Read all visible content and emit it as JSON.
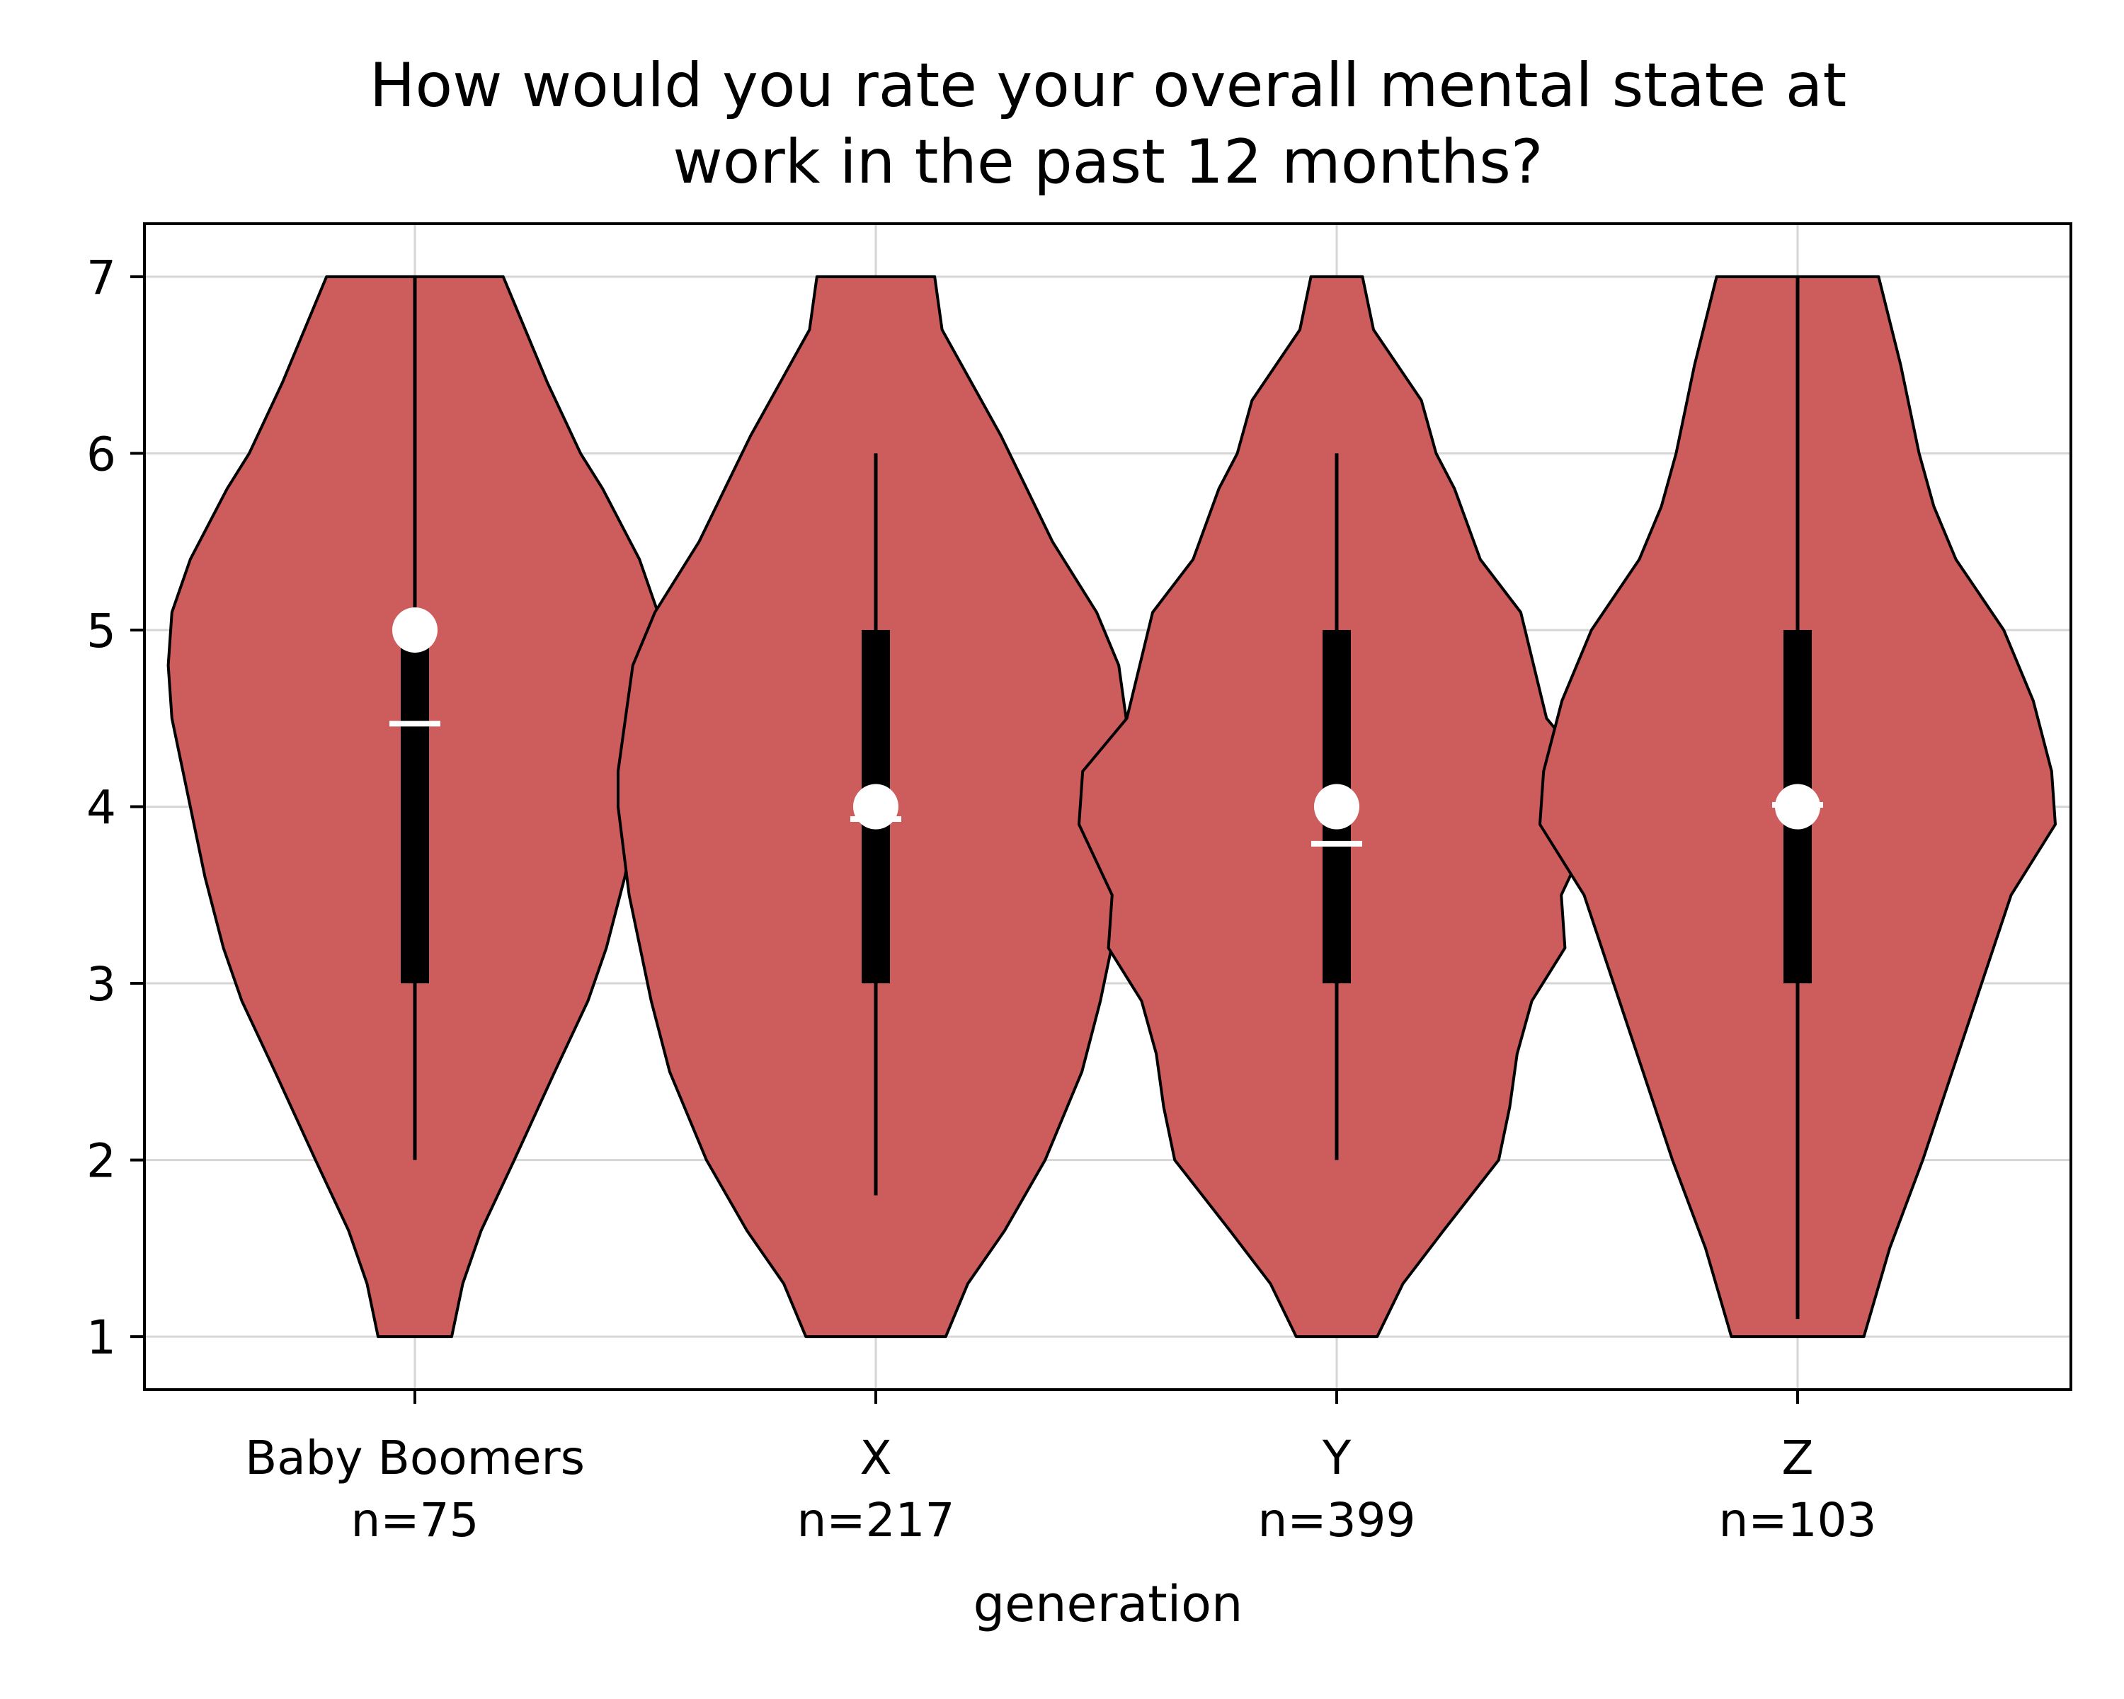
{
  "chart_data": {
    "type": "violin",
    "title_lines": [
      "How would you rate your overall mental state at",
      "work in the past 12 months?"
    ],
    "xlabel": "generation",
    "ylabel": "",
    "ylim": [
      0.7,
      7.3
    ],
    "yticks": [
      1,
      2,
      3,
      4,
      5,
      6,
      7
    ],
    "grid": true,
    "fill_color": "#cd5c5c",
    "edge_color": "#000000",
    "groups": [
      {
        "label": "Baby Boomers",
        "n_label": "n=75",
        "min": 1,
        "max": 7,
        "q1": 3,
        "q3": 5,
        "whisker_low": 2,
        "whisker_high": 7,
        "median": 5,
        "mean": 4.47,
        "density": [
          [
            1,
            0.1
          ],
          [
            1.3,
            0.13
          ],
          [
            1.6,
            0.18
          ],
          [
            2,
            0.27
          ],
          [
            2.5,
            0.38
          ],
          [
            2.9,
            0.47
          ],
          [
            3.2,
            0.52
          ],
          [
            3.6,
            0.57
          ],
          [
            4,
            0.61
          ],
          [
            4.5,
            0.66
          ],
          [
            4.8,
            0.67
          ],
          [
            5.1,
            0.66
          ],
          [
            5.4,
            0.61
          ],
          [
            5.8,
            0.51
          ],
          [
            6,
            0.45
          ],
          [
            6.4,
            0.36
          ],
          [
            6.8,
            0.28
          ],
          [
            7,
            0.24
          ]
        ]
      },
      {
        "label": "X",
        "n_label": "n=217",
        "min": 1,
        "max": 7,
        "q1": 3,
        "q3": 5,
        "whisker_low": 1.8,
        "whisker_high": 6,
        "median": 4,
        "mean": 3.93,
        "density": [
          [
            1,
            0.19
          ],
          [
            1.3,
            0.25
          ],
          [
            1.6,
            0.35
          ],
          [
            2,
            0.46
          ],
          [
            2.5,
            0.56
          ],
          [
            2.9,
            0.61
          ],
          [
            3.2,
            0.64
          ],
          [
            3.5,
            0.67
          ],
          [
            4,
            0.7
          ],
          [
            4.2,
            0.7
          ],
          [
            4.5,
            0.68
          ],
          [
            4.8,
            0.66
          ],
          [
            5.1,
            0.6
          ],
          [
            5.5,
            0.48
          ],
          [
            5.8,
            0.41
          ],
          [
            6.1,
            0.34
          ],
          [
            6.7,
            0.18
          ],
          [
            7,
            0.16
          ]
        ]
      },
      {
        "label": "Y",
        "n_label": "n=399",
        "min": 1,
        "max": 7,
        "q1": 3,
        "q3": 5,
        "whisker_low": 2,
        "whisker_high": 6,
        "median": 4,
        "mean": 3.79,
        "density": [
          [
            1,
            0.11
          ],
          [
            1.3,
            0.18
          ],
          [
            1.6,
            0.29
          ],
          [
            2,
            0.44
          ],
          [
            2.3,
            0.47
          ],
          [
            2.6,
            0.49
          ],
          [
            2.9,
            0.53
          ],
          [
            3.2,
            0.62
          ],
          [
            3.5,
            0.61
          ],
          [
            3.9,
            0.7
          ],
          [
            4.2,
            0.69
          ],
          [
            4.5,
            0.57
          ],
          [
            5.1,
            0.5
          ],
          [
            5.4,
            0.39
          ],
          [
            5.8,
            0.32
          ],
          [
            6,
            0.27
          ],
          [
            6.3,
            0.23
          ],
          [
            6.7,
            0.1
          ],
          [
            7,
            0.07
          ]
        ]
      },
      {
        "label": "Z",
        "n_label": "n=103",
        "min": 1,
        "max": 7,
        "q1": 3,
        "q3": 5,
        "whisker_low": 1.1,
        "whisker_high": 7,
        "median": 4,
        "mean": 4.01,
        "density": [
          [
            1,
            0.18
          ],
          [
            1.5,
            0.25
          ],
          [
            2,
            0.34
          ],
          [
            2.5,
            0.42
          ],
          [
            3,
            0.5
          ],
          [
            3.5,
            0.58
          ],
          [
            3.9,
            0.7
          ],
          [
            4.2,
            0.69
          ],
          [
            4.6,
            0.64
          ],
          [
            5,
            0.56
          ],
          [
            5.4,
            0.43
          ],
          [
            5.7,
            0.37
          ],
          [
            6,
            0.33
          ],
          [
            6.5,
            0.28
          ],
          [
            7,
            0.22
          ]
        ]
      }
    ]
  }
}
